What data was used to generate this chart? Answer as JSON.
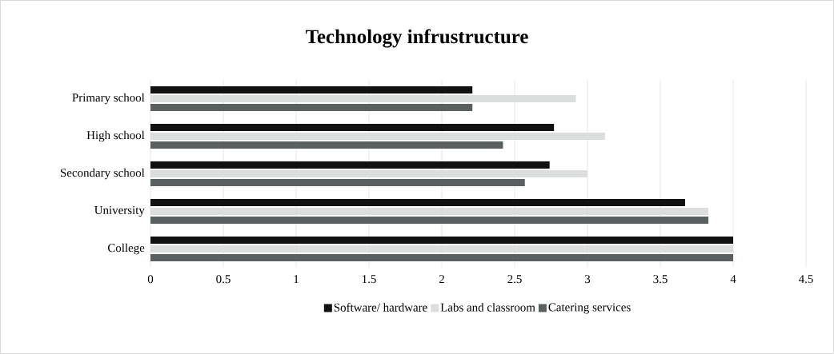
{
  "chart_data": {
    "type": "bar",
    "orientation": "horizontal",
    "title": "Technology infrustructure",
    "categories": [
      "Primary school",
      "High school",
      "Secondary school",
      "University",
      "College"
    ],
    "series": [
      {
        "name": "Software/ hardware",
        "color": "#111111",
        "values": [
          2.21,
          2.77,
          2.74,
          3.67,
          4
        ]
      },
      {
        "name": "Labs and classroom",
        "color": "#dcdedd",
        "values": [
          2.92,
          3.12,
          3.0,
          3.83,
          4
        ]
      },
      {
        "name": "Catering services",
        "color": "#5a605f",
        "values": [
          2.21,
          2.42,
          2.57,
          3.83,
          4
        ]
      }
    ],
    "xlim": [
      0,
      4.5
    ],
    "xticks": [
      0,
      0.5,
      1,
      1.5,
      2,
      2.5,
      3,
      3.5,
      4,
      4.5
    ],
    "grid": "x",
    "legend": "bottom"
  }
}
